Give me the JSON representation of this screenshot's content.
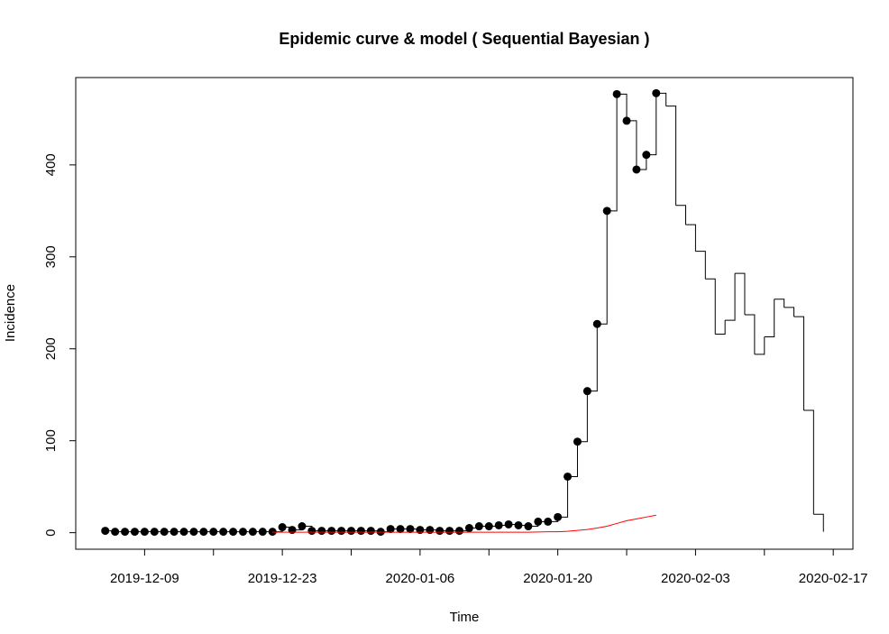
{
  "chart_data": {
    "type": "step",
    "title": "Epidemic curve & model ( Sequential Bayesian )",
    "xlabel": "Time",
    "ylabel": "Incidence",
    "x": [
      "2019-12-05",
      "2019-12-06",
      "2019-12-07",
      "2019-12-08",
      "2019-12-09",
      "2019-12-10",
      "2019-12-11",
      "2019-12-12",
      "2019-12-13",
      "2019-12-14",
      "2019-12-15",
      "2019-12-16",
      "2019-12-17",
      "2019-12-18",
      "2019-12-19",
      "2019-12-20",
      "2019-12-21",
      "2019-12-22",
      "2019-12-23",
      "2019-12-24",
      "2019-12-25",
      "2019-12-26",
      "2019-12-27",
      "2019-12-28",
      "2019-12-29",
      "2019-12-30",
      "2019-12-31",
      "2020-01-01",
      "2020-01-02",
      "2020-01-03",
      "2020-01-04",
      "2020-01-05",
      "2020-01-06",
      "2020-01-07",
      "2020-01-08",
      "2020-01-09",
      "2020-01-10",
      "2020-01-11",
      "2020-01-12",
      "2020-01-13",
      "2020-01-14",
      "2020-01-15",
      "2020-01-16",
      "2020-01-17",
      "2020-01-18",
      "2020-01-19",
      "2020-01-20",
      "2020-01-21",
      "2020-01-22",
      "2020-01-23",
      "2020-01-24",
      "2020-01-25",
      "2020-01-26",
      "2020-01-27",
      "2020-01-28",
      "2020-01-29",
      "2020-01-30",
      "2020-01-31",
      "2020-02-01",
      "2020-02-02",
      "2020-02-03",
      "2020-02-04",
      "2020-02-05",
      "2020-02-06",
      "2020-02-07",
      "2020-02-08",
      "2020-02-09",
      "2020-02-10",
      "2020-02-11",
      "2020-02-12",
      "2020-02-13",
      "2020-02-14",
      "2020-02-15",
      "2020-02-16"
    ],
    "series": [
      {
        "style": "step",
        "color": "#000000",
        "values": [
          2,
          1,
          1,
          1,
          1,
          1,
          1,
          1,
          1,
          1,
          1,
          1,
          1,
          1,
          1,
          1,
          1,
          1,
          6,
          3,
          7,
          2,
          2,
          2,
          2,
          2,
          2,
          2,
          1,
          4,
          4,
          4,
          3,
          3,
          2,
          2,
          2,
          5,
          7,
          7,
          8,
          9,
          8,
          7,
          12,
          12,
          17,
          61,
          99,
          154,
          227,
          350,
          477,
          448,
          395,
          411,
          478,
          464,
          356,
          335,
          306,
          276,
          216,
          231,
          282,
          237,
          194,
          213,
          254,
          245,
          235,
          133,
          20,
          1
        ]
      },
      {
        "style": "points",
        "color": "#000000",
        "values": [
          2,
          1,
          1,
          1,
          1,
          1,
          1,
          1,
          1,
          1,
          1,
          1,
          1,
          1,
          1,
          1,
          1,
          1,
          6,
          3,
          7,
          2,
          2,
          2,
          2,
          2,
          2,
          2,
          1,
          4,
          4,
          4,
          3,
          3,
          2,
          2,
          2,
          5,
          7,
          7,
          8,
          9,
          8,
          7,
          12,
          12,
          17,
          61,
          99,
          154,
          227,
          350,
          477,
          448,
          395,
          411,
          478,
          null,
          null,
          null,
          null,
          null,
          null,
          null,
          null,
          null,
          null,
          null,
          null,
          null,
          null,
          null,
          null,
          null
        ]
      },
      {
        "style": "line",
        "color": "#ff0000",
        "values": [
          null,
          null,
          null,
          null,
          null,
          null,
          null,
          null,
          null,
          null,
          null,
          null,
          null,
          null,
          null,
          null,
          null,
          0.5,
          0.5,
          0.5,
          0.5,
          0.5,
          0.5,
          0.5,
          0.5,
          0.5,
          0.5,
          0.5,
          0.5,
          0.5,
          0.5,
          0.5,
          0.5,
          0.5,
          0.5,
          0.5,
          0.5,
          0.5,
          0.5,
          0.5,
          0.5,
          0.5,
          0.5,
          0.5,
          0.7,
          1,
          1,
          1.5,
          2.5,
          3.5,
          5,
          7,
          10,
          13,
          15,
          17,
          19,
          null,
          null,
          null,
          null,
          null,
          null,
          null,
          null,
          null,
          null,
          null,
          null,
          null,
          null,
          null,
          null,
          null
        ]
      }
    ],
    "xlim": [
      "2019-12-02",
      "2020-02-19"
    ],
    "xticks": [
      "2019-12-09",
      "2019-12-23",
      "2020-01-06",
      "2020-01-20",
      "2020-02-03",
      "2020-02-17"
    ],
    "xminor_ticks": [
      "2019-12-16",
      "2019-12-30",
      "2020-01-13",
      "2020-01-27",
      "2020-02-10"
    ],
    "ylim": [
      -18,
      495
    ],
    "yticks": [
      0,
      100,
      200,
      300,
      400
    ]
  }
}
